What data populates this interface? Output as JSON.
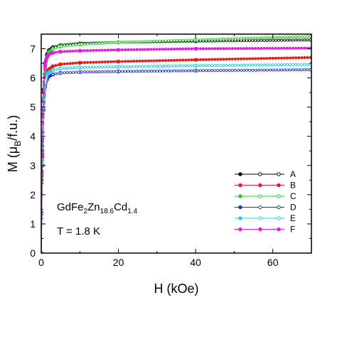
{
  "chart_data": {
    "type": "line",
    "xlabel": "H (kOe)",
    "ylabel_main": "M (μ",
    "ylabel_sub": "B",
    "ylabel_tail": "/f.u.)",
    "xlim": [
      0,
      70
    ],
    "ylim": [
      0,
      7.5
    ],
    "xticks": [
      0,
      20,
      40,
      60
    ],
    "yticks": [
      0,
      1,
      2,
      3,
      4,
      5,
      6,
      7
    ],
    "grid": false,
    "legend_position": "right-middle",
    "annotation_formula": {
      "parts": [
        {
          "text": "GdFe",
          "sub": false
        },
        {
          "text": "2",
          "sub": true
        },
        {
          "text": "Zn",
          "sub": false
        },
        {
          "text": "18.6",
          "sub": true
        },
        {
          "text": "Cd",
          "sub": false
        },
        {
          "text": "1.4",
          "sub": true
        }
      ]
    },
    "annotation_temperature": "T = 1.8 K",
    "series": [
      {
        "name": "A",
        "color": "#000000",
        "marker_fill": "open",
        "x": [
          0,
          0.3,
          0.6,
          1,
          1.5,
          2,
          3,
          5,
          10,
          20,
          40,
          70
        ],
        "y": [
          0,
          3.5,
          5.6,
          6.5,
          6.8,
          6.95,
          7.05,
          7.12,
          7.18,
          7.22,
          7.26,
          7.3
        ]
      },
      {
        "name": "B",
        "color": "#e02020",
        "marker_fill": "filled",
        "x": [
          0,
          0.3,
          0.6,
          1,
          1.5,
          2,
          3,
          5,
          10,
          20,
          40,
          70
        ],
        "y": [
          0,
          3.3,
          5.2,
          6.0,
          6.2,
          6.3,
          6.4,
          6.47,
          6.52,
          6.56,
          6.62,
          6.7
        ]
      },
      {
        "name": "C",
        "color": "#22cc22",
        "marker_fill": "open",
        "x": [
          0,
          0.3,
          0.6,
          1,
          1.5,
          2,
          3,
          5,
          10,
          20,
          40,
          70
        ],
        "y": [
          0,
          3.2,
          5.3,
          6.3,
          6.7,
          6.9,
          7.0,
          7.08,
          7.15,
          7.22,
          7.3,
          7.42
        ]
      },
      {
        "name": "D",
        "color": "#2030d0",
        "marker_fill": "open",
        "x": [
          0,
          0.3,
          0.6,
          1,
          1.5,
          2,
          3,
          5,
          10,
          20,
          40,
          70
        ],
        "y": [
          0,
          3.0,
          4.9,
          5.7,
          5.95,
          6.05,
          6.12,
          6.17,
          6.2,
          6.22,
          6.25,
          6.28
        ]
      },
      {
        "name": "E",
        "color": "#22cce0",
        "marker_fill": "open",
        "x": [
          0,
          0.3,
          0.6,
          1,
          1.5,
          2,
          3,
          5,
          10,
          20,
          40,
          70
        ],
        "y": [
          0,
          3.1,
          5.0,
          5.85,
          6.1,
          6.2,
          6.27,
          6.32,
          6.36,
          6.38,
          6.42,
          6.46
        ]
      },
      {
        "name": "F",
        "color": "#dd22dd",
        "marker_fill": "filled",
        "x": [
          0,
          0.3,
          0.6,
          1,
          1.5,
          2,
          3,
          5,
          10,
          20,
          40,
          70
        ],
        "y": [
          0,
          3.4,
          5.5,
          6.4,
          6.7,
          6.8,
          6.86,
          6.9,
          6.93,
          6.96,
          7.0,
          7.02
        ]
      }
    ]
  }
}
